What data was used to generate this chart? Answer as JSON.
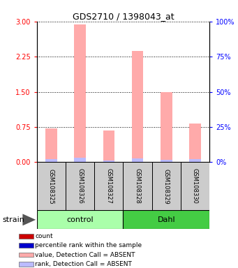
{
  "title": "GDS2710 / 1398043_at",
  "samples": [
    "GSM108325",
    "GSM108326",
    "GSM108327",
    "GSM108328",
    "GSM108329",
    "GSM108330"
  ],
  "groups": [
    {
      "name": "control",
      "indices": [
        0,
        1,
        2
      ],
      "color": "#aaffaa"
    },
    {
      "name": "Dahl",
      "indices": [
        3,
        4,
        5
      ],
      "color": "#44cc44"
    }
  ],
  "strain_label": "strain",
  "values": [
    0.72,
    2.93,
    0.67,
    2.37,
    1.5,
    0.82
  ],
  "ranks": [
    0.06,
    0.1,
    0.04,
    0.08,
    0.05,
    0.06
  ],
  "ylim_left": [
    0,
    3
  ],
  "ylim_right": [
    0,
    100
  ],
  "yticks_left": [
    0,
    0.75,
    1.5,
    2.25,
    3
  ],
  "yticks_right": [
    0,
    25,
    50,
    75,
    100
  ],
  "bar_color_value": "#ffaaaa",
  "bar_color_rank": "#bbbbff",
  "bar_width": 0.4,
  "sample_box_color": "#cccccc",
  "legend": [
    {
      "color": "#cc0000",
      "label": "count"
    },
    {
      "color": "#0000cc",
      "label": "percentile rank within the sample"
    },
    {
      "color": "#ffaaaa",
      "label": "value, Detection Call = ABSENT"
    },
    {
      "color": "#bbbbff",
      "label": "rank, Detection Call = ABSENT"
    }
  ]
}
